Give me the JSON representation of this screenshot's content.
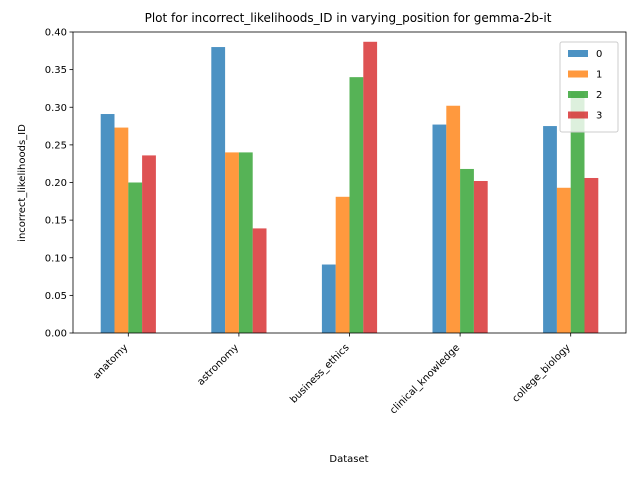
{
  "chart_data": {
    "type": "bar",
    "title": "Plot for incorrect_likelihoods_ID in varying_position for gemma-2b-it",
    "xlabel": "Dataset",
    "ylabel": "incorrect_likelihoods_ID",
    "categories": [
      "anatomy",
      "astronomy",
      "business_ethics",
      "clinical_knowledge",
      "college_biology"
    ],
    "series": [
      {
        "name": "0",
        "color": "#1f77b4",
        "values": [
          0.291,
          0.38,
          0.091,
          0.277,
          0.275
        ]
      },
      {
        "name": "1",
        "color": "#ff7f0e",
        "values": [
          0.273,
          0.24,
          0.181,
          0.302,
          0.193
        ]
      },
      {
        "name": "2",
        "color": "#2ca02c",
        "values": [
          0.2,
          0.24,
          0.34,
          0.218,
          0.32
        ]
      },
      {
        "name": "3",
        "color": "#d62728",
        "values": [
          0.236,
          0.139,
          0.387,
          0.202,
          0.206
        ]
      }
    ],
    "yticks": [
      "0.00",
      "0.05",
      "0.10",
      "0.15",
      "0.20",
      "0.25",
      "0.30",
      "0.35",
      "0.40"
    ],
    "ylim": [
      0,
      0.4
    ],
    "grid": false,
    "legend_position": "top-right"
  }
}
